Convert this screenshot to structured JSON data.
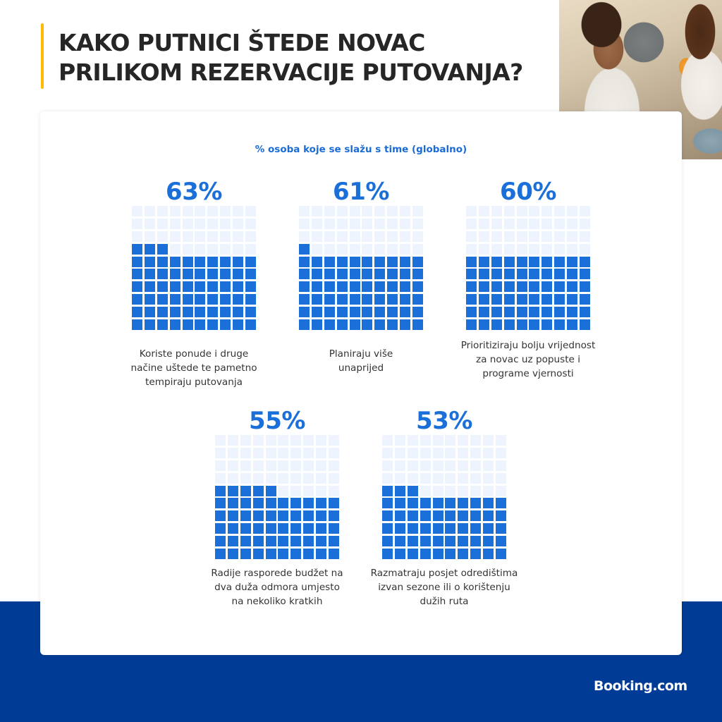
{
  "header": {
    "title_lines": [
      "KAKO PUTNICI ŠTEDE NOVAC",
      "PRILIKOM REZERVACIJE PUTOVANJA?"
    ],
    "accent_color": "#febb02"
  },
  "photo": {
    "description": "smiling couple with child, traveling"
  },
  "card": {
    "subtitle": "% osoba koje se slažu s time (globalno)"
  },
  "colors": {
    "filled": "#1a6fd8",
    "empty": "#eef4fd",
    "brand_blue": "#003b95"
  },
  "stats": [
    {
      "value": 63,
      "label": "63%",
      "caption_lines": [
        "Koriste ponude i druge",
        "načine uštede te pametno",
        "tempiraju putovanja"
      ]
    },
    {
      "value": 61,
      "label": "61%",
      "caption_lines": [
        "Planiraju više",
        "unaprijed"
      ]
    },
    {
      "value": 60,
      "label": "60%",
      "caption_lines": [
        "Prioritiziraju bolju vrijednost",
        "za novac uz popuste i",
        "programe vjernosti"
      ]
    },
    {
      "value": 55,
      "label": "55%",
      "caption_lines": [
        "Radije rasporede budžet na",
        "dva duža odmora umjesto",
        "na nekoliko kratkih"
      ]
    },
    {
      "value": 53,
      "label": "53%",
      "caption_lines": [
        "Razmatraju posjet odredištima",
        "izvan sezone ili o korištenju",
        "dužih ruta"
      ]
    }
  ],
  "footer": {
    "logo": "Booking.com"
  },
  "chart_data": {
    "type": "waffle",
    "title": "Kako putnici štede novac prilikom rezervacije putovanja?",
    "subtitle": "% osoba koje se slažu s time (globalno)",
    "grid": "10x10 per category, filled from bottom, partial row filled left-to-right",
    "categories": [
      "Koriste ponude i druge načine uštede te pametno tempiraju putovanja",
      "Planiraju više unaprijed",
      "Prioritiziraju bolju vrijednost za novac uz popuste i programe vjernosti",
      "Radije rasporede budžet na dva duža odmora umjesto na nekoliko kratkih",
      "Razmatraju posjet odredištima izvan sezone ili o korištenju dužih ruta"
    ],
    "values": [
      63,
      61,
      60,
      55,
      53
    ],
    "unit": "%"
  }
}
